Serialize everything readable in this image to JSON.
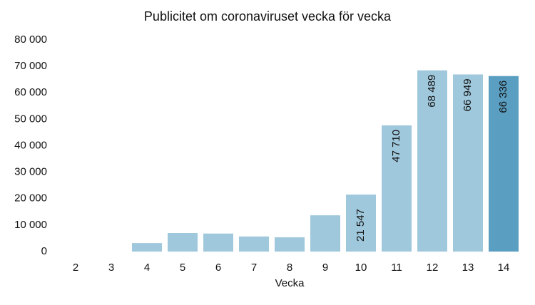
{
  "chart_data": {
    "type": "bar",
    "title": "Publicitet om coronaviruset vecka för vecka",
    "x_label": "Vecka",
    "categories": [
      "2",
      "3",
      "4",
      "5",
      "6",
      "7",
      "8",
      "9",
      "10",
      "11",
      "12",
      "13",
      "14"
    ],
    "values": [
      0,
      0,
      3200,
      7000,
      6800,
      5700,
      5400,
      13700,
      21547,
      47710,
      68489,
      66949,
      66336
    ],
    "value_labels": [
      null,
      null,
      null,
      null,
      null,
      null,
      null,
      null,
      "21 547",
      "47 710",
      "68 489",
      "66 949",
      "66 336"
    ],
    "colors": [
      "#a0c8dc",
      "#a0c8dc",
      "#a0c8dc",
      "#a0c8dc",
      "#a0c8dc",
      "#a0c8dc",
      "#a0c8dc",
      "#a0c8dc",
      "#a0c8dc",
      "#a0c8dc",
      "#a0c8dc",
      "#a0c8dc",
      "#5a9fc1"
    ],
    "ylim": [
      0,
      80000
    ],
    "yticks": [
      0,
      {
        "value": 10000,
        "label": "10 000"
      },
      {
        "value": 20000,
        "label": "20 000"
      },
      {
        "value": 30000,
        "label": "30 000"
      },
      {
        "value": 40000,
        "label": "40 000"
      },
      {
        "value": 50000,
        "label": "50 000"
      },
      {
        "value": 60000,
        "label": "60 000"
      },
      {
        "value": 70000,
        "label": "70 000"
      },
      {
        "value": 80000,
        "label": "80 000"
      }
    ],
    "grid": false
  }
}
